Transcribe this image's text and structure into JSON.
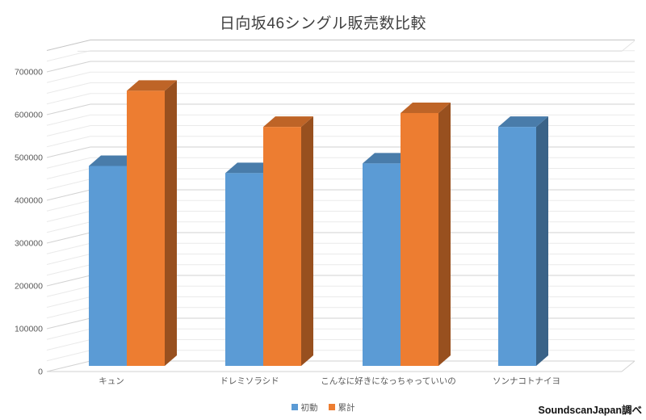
{
  "chart_data": {
    "type": "bar",
    "projection": "3d-clustered-column",
    "title": "日向坂46シングル販売数比較",
    "categories": [
      "キュン",
      "ドレミソラシド",
      "こんなに好きになっちゃっていいの",
      "ソンナコトナイヨ"
    ],
    "series": [
      {
        "name": "初動",
        "color": "#5B9BD5",
        "values": [
          476000,
          459000,
          482000,
          569000
        ]
      },
      {
        "name": "累計",
        "color": "#ED7D31",
        "values": [
          655000,
          569000,
          602000,
          null
        ]
      }
    ],
    "xlabel": "",
    "ylabel": "",
    "ylim": [
      0,
      750000
    ],
    "y_major_unit": 100000,
    "y_minor_unit": 25000,
    "y_tick_labels": [
      "0",
      "100000",
      "200000",
      "300000",
      "400000",
      "500000",
      "600000",
      "700000"
    ],
    "grid": "major and minor horizontal gridlines on 3D back wall, slanted on side wall",
    "legend_position": "bottom-center",
    "source": "SoundscanJapan調べ",
    "colors": {
      "series_1": "#5B9BD5",
      "series_2": "#ED7D31",
      "gridline_major": "#d2d2d2",
      "gridline_minor": "#eaeaea",
      "text": "#595959",
      "title_text": "#3f3f3f",
      "background": "#ffffff"
    }
  }
}
